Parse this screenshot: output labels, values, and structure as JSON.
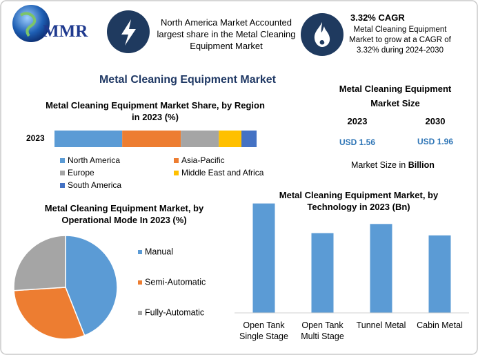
{
  "header": {
    "logo": "MMR",
    "highlight": "North America Market Accounted largest share in the Metal Cleaning Equipment Market",
    "cagr_title": "3.32% CAGR",
    "cagr_text": "Metal Cleaning Equipment Market to grow at a CAGR of 3.32% during 2024-2030"
  },
  "title": "Metal Cleaning Equipment Market",
  "market_size": {
    "title": "Metal Cleaning Equipment Market Size",
    "years": [
      "2023",
      "2030"
    ],
    "values": [
      "USD 1.56",
      "USD 1.96"
    ],
    "note": "Market Size in",
    "unit": "Billion"
  },
  "chart_data": [
    {
      "type": "stacked_bar",
      "title": "Metal Cleaning Equipment Market Share, by Region in 2023 (%)",
      "categories": [
        "2023"
      ],
      "xlim": [
        0,
        100
      ],
      "series": [
        {
          "name": "North America",
          "color": "#5b9bd5",
          "values": [
            33.5
          ]
        },
        {
          "name": "Asia-Pacific",
          "color": "#ed7d31",
          "values": [
            29
          ]
        },
        {
          "name": "Europe",
          "color": "#a5a5a5",
          "values": [
            18.8
          ]
        },
        {
          "name": "Middle East and Africa",
          "color": "#ffc000",
          "values": [
            11.2
          ]
        },
        {
          "name": "South America",
          "color": "#4472c4",
          "values": [
            7.5
          ]
        }
      ]
    },
    {
      "type": "pie",
      "title": "Metal Cleaning Equipment Market, by Operational Mode In 2023 (%)",
      "categories": [
        "Manual",
        "Semi-Automatic",
        "Fully-Automatic"
      ],
      "values": [
        44,
        30,
        26
      ],
      "colors": [
        "#5b9bd5",
        "#ed7d31",
        "#a5a5a5"
      ]
    },
    {
      "type": "bar",
      "title": "Metal Cleaning Equipment Market, by Technology in 2023 (Bn)",
      "categories": [
        "Open Tank Single Stage",
        "Open Tank Multi Stage",
        "Tunnel Metal",
        "Cabin Metal"
      ],
      "values": [
        0.48,
        0.35,
        0.39,
        0.34
      ],
      "color": "#5b9bd5",
      "ylim": [
        0,
        0.5
      ]
    }
  ]
}
